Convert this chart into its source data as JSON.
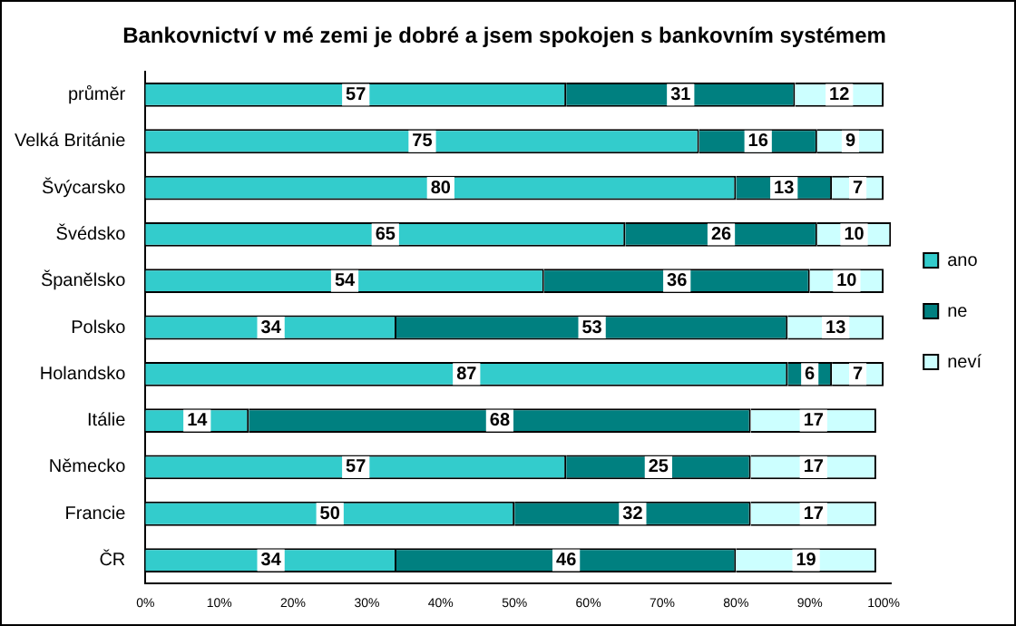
{
  "chart_data": {
    "type": "bar",
    "orientation": "horizontal",
    "stacked": true,
    "title": "Bankovnictví v mé zemi je dobré a jsem spokojen s bankovním systémem",
    "categories": [
      "průměr",
      "Velká Británie",
      "Švýcarsko",
      "Švédsko",
      "Španělsko",
      "Polsko",
      "Holandsko",
      "Itálie",
      "Německo",
      "Francie",
      "ČR"
    ],
    "series": [
      {
        "name": "ano",
        "color": "#33cccc",
        "values": [
          57,
          75,
          80,
          65,
          54,
          34,
          87,
          14,
          57,
          50,
          34
        ]
      },
      {
        "name": "ne",
        "color": "#008080",
        "values": [
          31,
          16,
          13,
          26,
          36,
          53,
          6,
          68,
          25,
          32,
          46
        ]
      },
      {
        "name": "neví",
        "color": "#ccffff",
        "values": [
          12,
          9,
          7,
          10,
          10,
          13,
          7,
          17,
          17,
          17,
          19
        ]
      }
    ],
    "xlim": [
      0,
      101
    ],
    "xticks": [
      {
        "value": 0,
        "label": "0%"
      },
      {
        "value": 10,
        "label": "10%"
      },
      {
        "value": 20,
        "label": "20%"
      },
      {
        "value": 30,
        "label": "30%"
      },
      {
        "value": 40,
        "label": "40%"
      },
      {
        "value": 50,
        "label": "50%"
      },
      {
        "value": 60,
        "label": "60%"
      },
      {
        "value": 70,
        "label": "70%"
      },
      {
        "value": 80,
        "label": "80%"
      },
      {
        "value": 90,
        "label": "90%"
      },
      {
        "value": 100,
        "label": "100%"
      }
    ],
    "data_labels": true,
    "legend": "right",
    "grid": false
  }
}
